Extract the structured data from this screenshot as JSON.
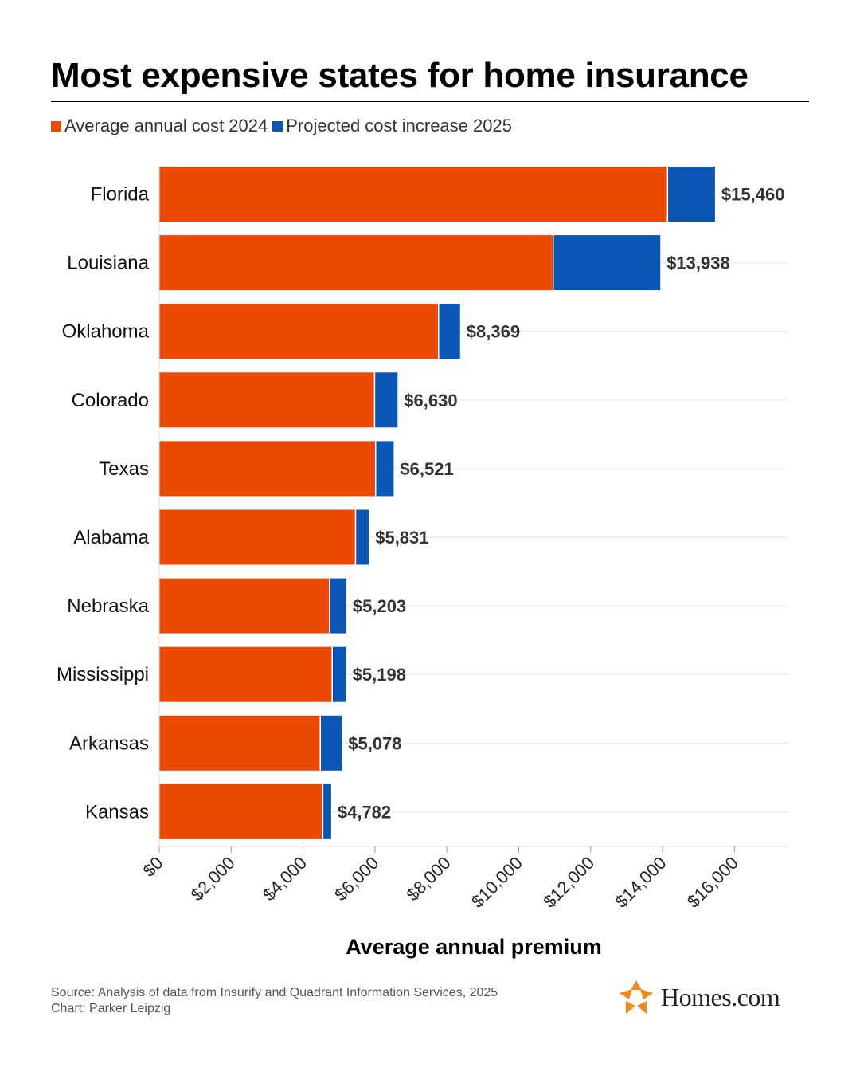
{
  "title": "Most expensive states for home insurance",
  "legend": {
    "series1": "Average annual cost 2024",
    "series2": "Projected cost increase 2025"
  },
  "colors": {
    "series1": "#eb4a05",
    "series2": "#0a56b5",
    "grid": "#e6e6e6",
    "logo_orange": "#f08a1c"
  },
  "footer": {
    "source": "Source: Analysis of data from Insurify and Quadrant Information Services, 2025",
    "credit": "Chart: Parker Leipzig"
  },
  "logo": {
    "text": "Homes.com",
    "icon": "homes-com-star-icon"
  },
  "chart_data": {
    "type": "bar",
    "orientation": "horizontal",
    "stacked": true,
    "categories": [
      "Florida",
      "Louisiana",
      "Oklahoma",
      "Colorado",
      "Texas",
      "Alabama",
      "Nebraska",
      "Mississippi",
      "Arkansas",
      "Kansas"
    ],
    "series": [
      {
        "name": "Average annual cost 2024",
        "values": [
          14140,
          10960,
          7770,
          5990,
          6020,
          5460,
          4740,
          4810,
          4480,
          4550
        ]
      },
      {
        "name": "Projected cost increase 2025",
        "values": [
          1320,
          2978,
          599,
          640,
          501,
          371,
          463,
          388,
          598,
          232
        ]
      }
    ],
    "totals": [
      15460,
      13938,
      8369,
      6630,
      6521,
      5831,
      5203,
      5198,
      5078,
      4782
    ],
    "total_labels": [
      "$15,460",
      "$13,938",
      "$8,369",
      "$6,630",
      "$6,521",
      "$5,831",
      "$5,203",
      "$5,198",
      "$5,078",
      "$4,782"
    ],
    "xlabel": "Average annual premium",
    "ylabel": "",
    "xlim": [
      0,
      17500
    ],
    "xticks": [
      0,
      2000,
      4000,
      6000,
      8000,
      10000,
      12000,
      14000,
      16000
    ],
    "xtick_labels": [
      "$0",
      "$2,000",
      "$4,000",
      "$6,000",
      "$8,000",
      "$10,000",
      "$12,000",
      "$14,000",
      "$16,000"
    ],
    "grid": true,
    "legend_position": "top-left"
  }
}
